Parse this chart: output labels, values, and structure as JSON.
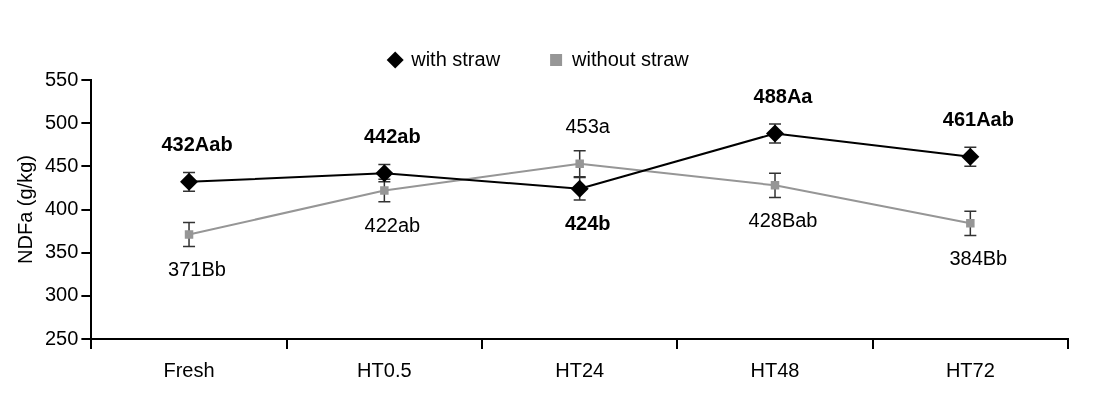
{
  "chart_data": {
    "type": "line",
    "ylabel": "NDFa (g/kg)",
    "categories": [
      "Fresh",
      "HT0.5",
      "HT24",
      "HT48",
      "HT72"
    ],
    "series": [
      {
        "name": "with straw",
        "color": "#000000",
        "marker": "diamond",
        "values": [
          432,
          442,
          424,
          488,
          461
        ],
        "errors": [
          11,
          10,
          13,
          11,
          11
        ],
        "value_labels": [
          "432Aab",
          "442ab",
          "424b",
          "488Aa",
          "461Aab"
        ]
      },
      {
        "name": "without straw",
        "color": "#969696",
        "marker": "square",
        "values": [
          371,
          422,
          453,
          428,
          384
        ],
        "errors": [
          14,
          13,
          15,
          14,
          14
        ],
        "value_labels": [
          "371Bb",
          "422ab",
          "453a",
          "428Bab",
          "384Bb"
        ]
      }
    ],
    "ylim": [
      250,
      550
    ],
    "yticks": [
      250,
      300,
      350,
      400,
      450,
      500,
      550
    ],
    "grid": false,
    "legend": "top",
    "line_style": "solid"
  }
}
